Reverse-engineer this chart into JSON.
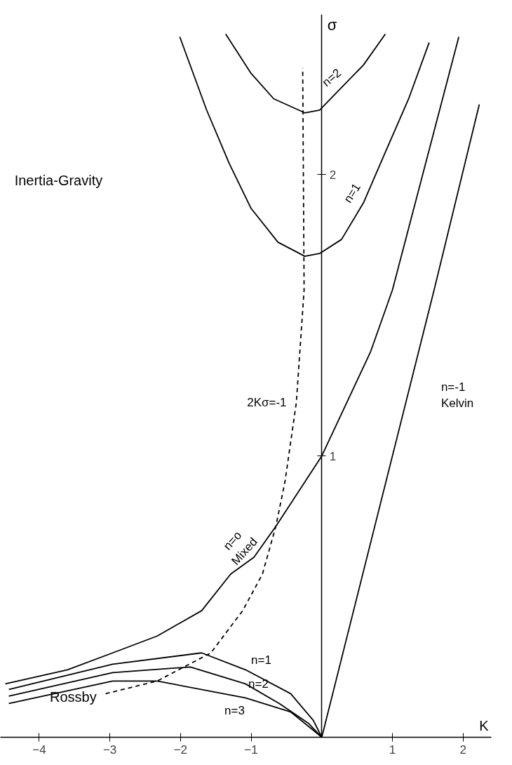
{
  "chart_data": {
    "type": "line",
    "xlabel": "K",
    "ylabel": "σ",
    "xlim": [
      -4.55,
      2.4
    ],
    "ylim": [
      0,
      2.57
    ],
    "xticks": [
      -4,
      -3,
      -2,
      -1,
      1,
      2
    ],
    "yticks": [
      1,
      2
    ],
    "grid": false,
    "legend": false,
    "marker": "none",
    "line_style": "solid",
    "annotations": [
      "Inertia-Gravity",
      "Rossby"
    ],
    "series": [
      {
        "name": "n=2",
        "color": "#000000",
        "x": [
          -1.36,
          -1.0,
          -0.68,
          -0.24,
          -0.03,
          0.28,
          0.59,
          0.9
        ],
        "values": [
          2.5,
          2.36,
          2.27,
          2.22,
          2.23,
          2.31,
          2.39,
          2.5
        ]
      },
      {
        "name": "n=1",
        "color": "#000000",
        "x": [
          -2.01,
          -1.63,
          -1.31,
          -1.0,
          -0.62,
          -0.24,
          -0.03,
          0.28,
          0.59,
          0.9,
          1.23,
          1.52
        ],
        "values": [
          2.49,
          2.23,
          2.04,
          1.88,
          1.76,
          1.71,
          1.72,
          1.77,
          1.9,
          2.08,
          2.27,
          2.47
        ]
      },
      {
        "name": "n=o\nMixed",
        "color": "#000000",
        "x": [
          -4.48,
          -3.6,
          -2.96,
          -2.33,
          -1.7,
          -1.29,
          -0.96,
          -0.65,
          0.0,
          0.69,
          1.0,
          1.94
        ],
        "values": [
          0.19,
          0.24,
          0.3,
          0.36,
          0.45,
          0.58,
          0.64,
          0.75,
          1.0,
          1.37,
          1.59,
          2.49
        ]
      },
      {
        "name": "n=-1\nKelvin",
        "color": "#000000",
        "x": [
          0.0,
          1.59,
          2.23
        ],
        "values": [
          0.0,
          1.59,
          2.25
        ]
      },
      {
        "name": "n=1",
        "color": "#000000",
        "x": [
          -4.43,
          -2.96,
          -1.7,
          -1.08,
          -0.44,
          -0.12,
          0.0
        ],
        "values": [
          0.17,
          0.26,
          0.3,
          0.24,
          0.155,
          0.06,
          0.0
        ]
      },
      {
        "name": "n=2",
        "color": "#000000",
        "x": [
          -4.43,
          -2.96,
          -1.86,
          -1.08,
          -0.6,
          -0.19,
          0.0
        ],
        "values": [
          0.146,
          0.23,
          0.25,
          0.19,
          0.12,
          0.05,
          0.0
        ]
      },
      {
        "name": "n=3",
        "color": "#000000",
        "x": [
          -4.43,
          -2.96,
          -2.33,
          -1.08,
          -0.44,
          -0.12,
          0.0
        ],
        "values": [
          0.12,
          0.2,
          0.2,
          0.14,
          0.09,
          0.025,
          0.0
        ]
      },
      {
        "name": "2Kσ=-1",
        "color": "#000000",
        "line_style": "dashed",
        "x": [
          -3.06,
          -2.33,
          -1.57,
          -1.12,
          -0.84,
          -0.65,
          -0.52,
          -0.36,
          -0.25,
          -0.27
        ],
        "values": [
          0.155,
          0.2,
          0.3,
          0.45,
          0.58,
          0.75,
          0.91,
          1.19,
          1.59,
          2.38
        ]
      }
    ]
  }
}
